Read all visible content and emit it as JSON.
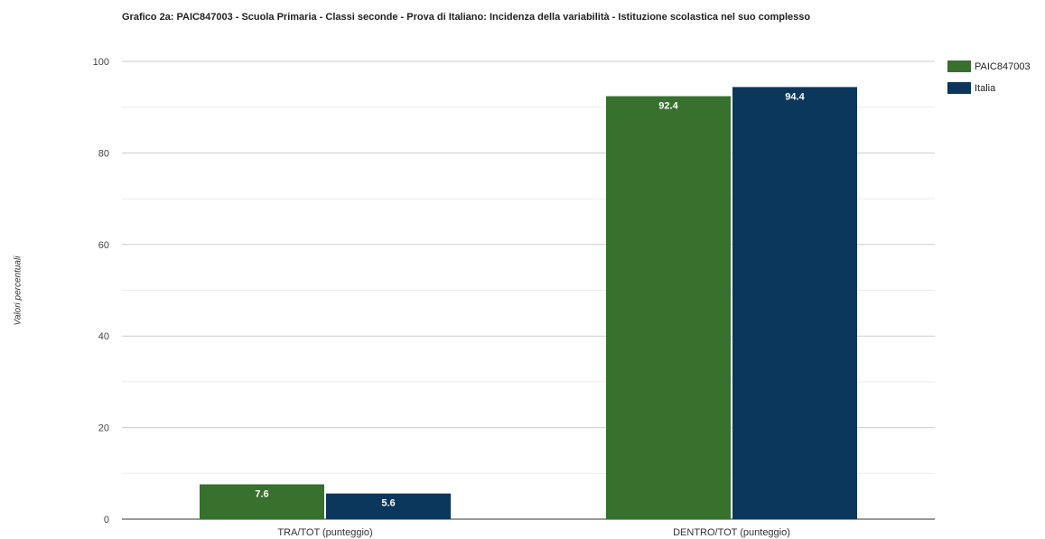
{
  "chart_data": {
    "type": "bar",
    "title": "Grafico 2a: PAIC847003 - Scuola Primaria - Classi seconde - Prova di Italiano: Incidenza della variabilità - Istituzione scolastica nel suo complesso",
    "ylabel": "Valori percentuali",
    "xlabel": "",
    "categories": [
      "TRA/TOT (punteggio)",
      "DENTRO/TOT (punteggio)"
    ],
    "series": [
      {
        "name": "PAIC847003",
        "values": [
          7.6,
          92.4
        ],
        "color": "#38702e"
      },
      {
        "name": "Italia",
        "values": [
          5.6,
          94.4
        ],
        "color": "#0c375c"
      }
    ],
    "ylim": [
      0,
      100
    ],
    "yticks": [
      0,
      20,
      40,
      60,
      80,
      100
    ],
    "grid": true,
    "legend_position": "right"
  }
}
